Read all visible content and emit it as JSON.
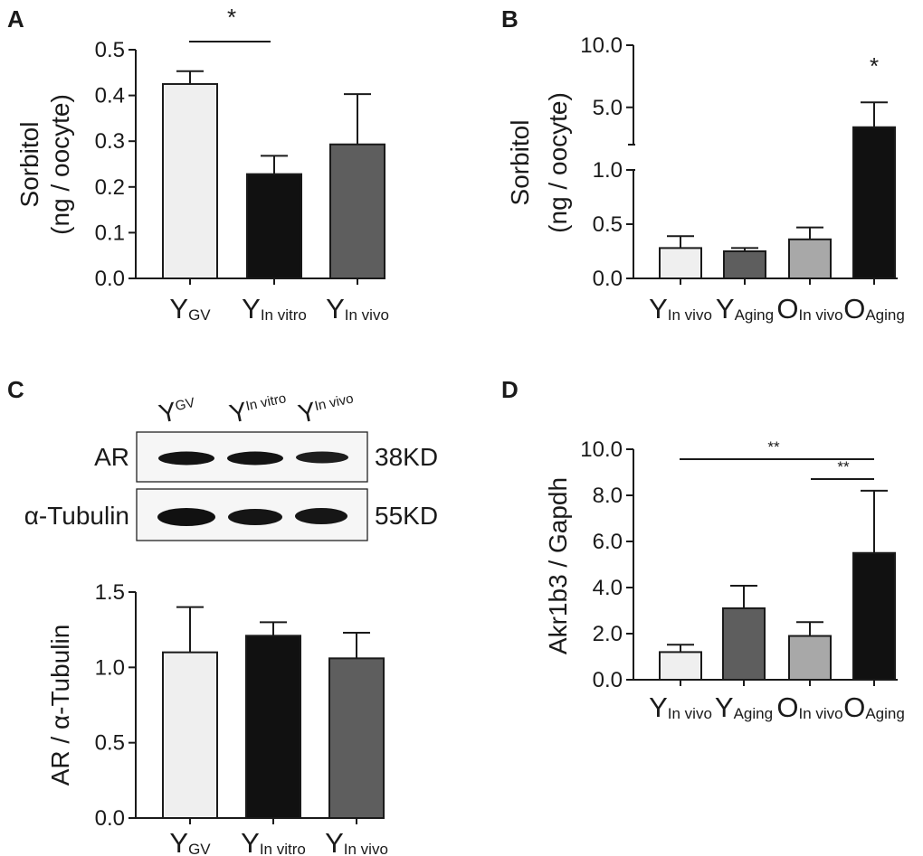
{
  "colors": {
    "axis": "#1a1a1a",
    "light": "#efefef",
    "black": "#111111",
    "dark_gray": "#5e5e5e",
    "medium_gray": "#a8a8a8",
    "blot_band": "#141414"
  },
  "chart_data": [
    {
      "panel": "A",
      "type": "bar",
      "ylabel_line1": "Sorbitol",
      "ylabel_line2": "(ng / oocyte)",
      "ylim": [
        0,
        0.5
      ],
      "yticks": [
        "0.0",
        "0.1",
        "0.2",
        "0.3",
        "0.4",
        "0.5"
      ],
      "categories": [
        {
          "main": "Y",
          "sub": "GV"
        },
        {
          "main": "Y",
          "sub": "In vitro"
        },
        {
          "main": "Y",
          "sub": "In vivo"
        }
      ],
      "values": [
        0.425,
        0.228,
        0.293
      ],
      "errors": [
        0.028,
        0.04,
        0.11
      ],
      "fills": [
        "light",
        "black",
        "dark_gray"
      ],
      "significance": [
        {
          "label": "*",
          "from": 0,
          "to": 1
        }
      ]
    },
    {
      "panel": "B",
      "type": "bar",
      "ylabel_line1": "Sorbitol",
      "ylabel_line2": "(ng / oocyte)",
      "axis_break": {
        "lower_max": 1.0,
        "upper_min": 2.0,
        "upper_max": 10.0
      },
      "yticks": [
        "0.0",
        "0.5",
        "1.0",
        "5.0",
        "10.0"
      ],
      "categories": [
        {
          "main": "Y",
          "sub": "In vivo"
        },
        {
          "main": "Y",
          "sub": "Aging"
        },
        {
          "main": "O",
          "sub": "In vivo"
        },
        {
          "main": "O",
          "sub": "Aging"
        }
      ],
      "values": [
        0.28,
        0.25,
        0.36,
        3.4
      ],
      "errors": [
        0.11,
        0.03,
        0.11,
        2.0
      ],
      "fills": [
        "light",
        "dark_gray",
        "medium_gray",
        "black"
      ],
      "significance": [
        {
          "label": "*",
          "over": 3
        }
      ]
    },
    {
      "panel": "C",
      "type": "bar",
      "ylabel": "AR / α-Tubulin",
      "ylim": [
        0,
        1.5
      ],
      "yticks": [
        "0.0",
        "0.5",
        "1.0",
        "1.5"
      ],
      "categories": [
        {
          "main": "Y",
          "sub": "GV"
        },
        {
          "main": "Y",
          "sub": "In vitro"
        },
        {
          "main": "Y",
          "sub": "In vivo"
        }
      ],
      "values": [
        1.1,
        1.21,
        1.06
      ],
      "errors": [
        0.3,
        0.09,
        0.17
      ],
      "fills": [
        "light",
        "black",
        "dark_gray"
      ],
      "blot": {
        "lanes": [
          {
            "main": "Y",
            "sub": "GV"
          },
          {
            "main": "Y",
            "sub": "In vitro"
          },
          {
            "main": "Y",
            "sub": "In vivo"
          }
        ],
        "rows": [
          {
            "protein": "AR",
            "size": "38KD"
          },
          {
            "protein": "α-Tubulin",
            "size": "55KD"
          }
        ]
      }
    },
    {
      "panel": "D",
      "type": "bar",
      "ylabel": "Akr1b3 / Gapdh",
      "ylim": [
        0,
        10
      ],
      "yticks": [
        "0.0",
        "2.0",
        "4.0",
        "6.0",
        "8.0",
        "10.0"
      ],
      "categories": [
        {
          "main": "Y",
          "sub": "In vivo"
        },
        {
          "main": "Y",
          "sub": "Aging"
        },
        {
          "main": "O",
          "sub": "In vivo"
        },
        {
          "main": "O",
          "sub": "Aging"
        }
      ],
      "values": [
        1.2,
        3.1,
        1.9,
        5.5
      ],
      "errors": [
        0.32,
        0.98,
        0.6,
        2.7
      ],
      "fills": [
        "light",
        "dark_gray",
        "medium_gray",
        "black"
      ],
      "significance": [
        {
          "label": "**",
          "from": 0,
          "to": 3
        },
        {
          "label": "**",
          "from": 2,
          "to": 3
        }
      ]
    }
  ]
}
